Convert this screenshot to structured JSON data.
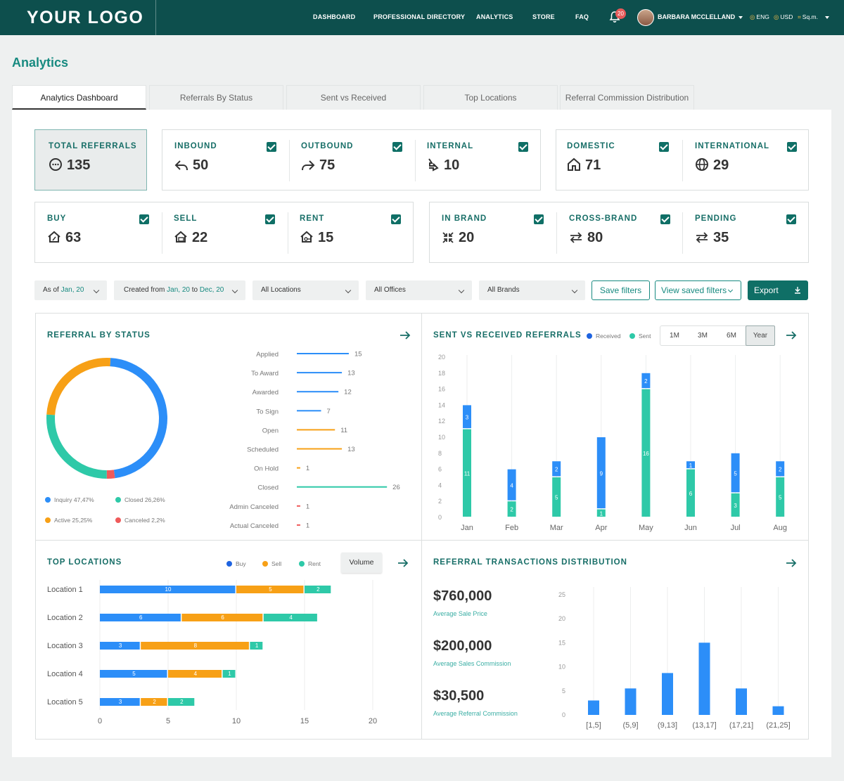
{
  "header": {
    "logo": "YOUR LOGO",
    "nav": [
      "DASHBOARD",
      "PROFESSIONAL DIRECTORY",
      "ANALYTICS",
      "STORE",
      "FAQ"
    ],
    "notifications": "20",
    "user": "BARBARA MCCLELLAND",
    "language": "ENG",
    "currency": "USD",
    "units": "Sq.m."
  },
  "page": {
    "title": "Analytics"
  },
  "tabs": [
    "Analytics Dashboard",
    "Referrals By Status",
    "Sent vs Received",
    "Top Locations",
    "Referral Commission Distribution"
  ],
  "kpis": {
    "total": {
      "label": "TOTAL REFERRALS",
      "value": "135"
    },
    "inbound": {
      "label": "INBOUND",
      "value": "50"
    },
    "outbound": {
      "label": "OUTBOUND",
      "value": "75"
    },
    "internal": {
      "label": "INTERNAL",
      "value": "10"
    },
    "domestic": {
      "label": "DOMESTIC",
      "value": "71"
    },
    "international": {
      "label": "INTERNATIONAL",
      "value": "29"
    },
    "buy": {
      "label": "BUY",
      "value": "63"
    },
    "sell": {
      "label": "SELL",
      "value": "22"
    },
    "rent": {
      "label": "RENT",
      "value": "15"
    },
    "in_brand": {
      "label": "IN BRAND",
      "value": "20"
    },
    "cross_brand": {
      "label": "CROSS-BRAND",
      "value": "80"
    },
    "pending": {
      "label": "PENDING",
      "value": "35"
    }
  },
  "filters": {
    "as_of_prefix": "As of ",
    "as_of": "Jan, 20",
    "created_prefix": "Created from ",
    "created_from": "Jan, 20",
    "created_mid": " to ",
    "created_to": "Dec, 20",
    "locations": "All Locations",
    "offices": "All Offices",
    "brands": "All Brands",
    "save": "Save filters",
    "view_saved": "View saved filters",
    "export": "Export"
  },
  "colors": {
    "blue": "#2c8ef8",
    "orange": "#f7a016",
    "teal": "#2ec9a8",
    "red": "#ef5a5a",
    "brand": "#0f6f66"
  },
  "chart_data": [
    {
      "type": "pie",
      "title": "REFERRAL BY STATUS",
      "series": [
        {
          "name": "Inquiry 47,47%",
          "value": 47.47
        },
        {
          "name": "Closed 26,26%",
          "value": 26.26
        },
        {
          "name": "Active 25,25%",
          "value": 25.25
        },
        {
          "name": "Canceled 2,2%",
          "value": 2.2
        }
      ]
    },
    {
      "type": "bar",
      "orientation": "horizontal",
      "categories": [
        "Applied",
        "To Award",
        "Awarded",
        "To Sign",
        "Open",
        "Scheduled",
        "On Hold",
        "Closed",
        "Admin Canceled",
        "Actual Canceled"
      ],
      "values": [
        15,
        13,
        12,
        7,
        11,
        13,
        1,
        26,
        1,
        1
      ],
      "bar_colors": [
        "blue",
        "blue",
        "blue",
        "blue",
        "orange",
        "orange",
        "orange",
        "teal",
        "red",
        "red"
      ]
    },
    {
      "type": "bar",
      "stacked": true,
      "title": "SENT VS RECEIVED REFERRALS",
      "legend": [
        "Received",
        "Sent"
      ],
      "range_options": [
        "1M",
        "3M",
        "6M",
        "Year"
      ],
      "selected_range": "Year",
      "categories": [
        "Jan",
        "Feb",
        "Mar",
        "Apr",
        "May",
        "Jun",
        "Jul",
        "Aug"
      ],
      "series": [
        {
          "name": "Sent",
          "values": [
            11,
            2,
            5,
            1,
            16,
            6,
            3,
            5
          ]
        },
        {
          "name": "Received",
          "values": [
            3,
            4,
            2,
            9,
            2,
            1,
            5,
            2
          ]
        }
      ],
      "ylim": [
        0,
        20
      ],
      "yticks": [
        0,
        2,
        4,
        6,
        8,
        10,
        12,
        14,
        16,
        18,
        20
      ]
    },
    {
      "type": "bar",
      "orientation": "horizontal",
      "stacked": true,
      "title": "TOP LOCATIONS",
      "legend": [
        "Buy",
        "Sell",
        "Rent"
      ],
      "toggle": "Volume",
      "categories": [
        "Location 1",
        "Location 2",
        "Location 3",
        "Location 4",
        "Location 5"
      ],
      "series": [
        {
          "name": "Buy",
          "values": [
            10,
            6,
            3,
            5,
            3
          ]
        },
        {
          "name": "Sell",
          "values": [
            5,
            6,
            8,
            4,
            2
          ]
        },
        {
          "name": "Rent",
          "values": [
            2,
            4,
            1,
            1,
            2
          ]
        }
      ],
      "xlim": [
        0,
        20
      ],
      "xticks": [
        0,
        5,
        10,
        15,
        20
      ]
    },
    {
      "type": "bar",
      "title": "REFERRAL TRANSACTIONS DISTRIBUTION",
      "categories": [
        "[1,5]",
        "(5,9]",
        "(9,13]",
        "(13,17]",
        "(17,21]",
        "(21,25]"
      ],
      "values": [
        3,
        5.5,
        8.7,
        15,
        5.5,
        1.8
      ],
      "ylim": [
        0,
        25
      ],
      "yticks": [
        0,
        5,
        10,
        15,
        20,
        25
      ]
    }
  ],
  "distribution_stats": [
    {
      "value": "$760,000",
      "label": "Average Sale Price"
    },
    {
      "value": "$200,000",
      "label": "Average Sales Commission"
    },
    {
      "value": "$30,500",
      "label": "Average Referral Commission"
    }
  ]
}
